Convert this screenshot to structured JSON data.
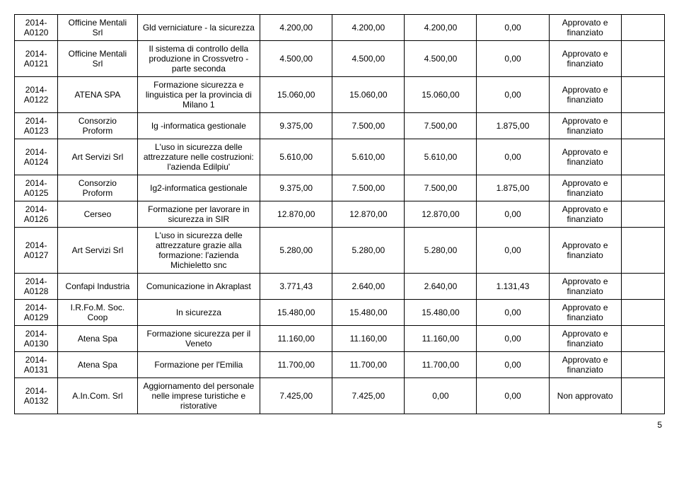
{
  "rows": [
    {
      "code": "2014-A0120",
      "org": "Officine Mentali Srl",
      "desc": "Gld verniciature - la sicurezza",
      "v1": "4.200,00",
      "v2": "4.200,00",
      "v3": "4.200,00",
      "v4": "0,00",
      "status": "Approvato e finanziato",
      "extra": ""
    },
    {
      "code": "2014-A0121",
      "org": "Officine Mentali Srl",
      "desc": "Il sistema di controllo della produzione in Crossvetro - parte seconda",
      "v1": "4.500,00",
      "v2": "4.500,00",
      "v3": "4.500,00",
      "v4": "0,00",
      "status": "Approvato e finanziato",
      "extra": ""
    },
    {
      "code": "2014-A0122",
      "org": "ATENA SPA",
      "desc": "Formazione sicurezza e linguistica per la provincia di Milano 1",
      "v1": "15.060,00",
      "v2": "15.060,00",
      "v3": "15.060,00",
      "v4": "0,00",
      "status": "Approvato e finanziato",
      "extra": ""
    },
    {
      "code": "2014-A0123",
      "org": "Consorzio Proform",
      "desc": "Ig -informatica gestionale",
      "v1": "9.375,00",
      "v2": "7.500,00",
      "v3": "7.500,00",
      "v4": "1.875,00",
      "status": "Approvato e finanziato",
      "extra": ""
    },
    {
      "code": "2014-A0124",
      "org": "Art Servizi Srl",
      "desc": "L'uso in sicurezza delle attrezzature nelle costruzioni: l'azienda Edilpiu'",
      "v1": "5.610,00",
      "v2": "5.610,00",
      "v3": "5.610,00",
      "v4": "0,00",
      "status": "Approvato e finanziato",
      "extra": ""
    },
    {
      "code": "2014-A0125",
      "org": "Consorzio Proform",
      "desc": "Ig2-informatica gestionale",
      "v1": "9.375,00",
      "v2": "7.500,00",
      "v3": "7.500,00",
      "v4": "1.875,00",
      "status": "Approvato e finanziato",
      "extra": ""
    },
    {
      "code": "2014-A0126",
      "org": "Cerseo",
      "desc": "Formazione per lavorare in sicurezza in SIR",
      "v1": "12.870,00",
      "v2": "12.870,00",
      "v3": "12.870,00",
      "v4": "0,00",
      "status": "Approvato e finanziato",
      "extra": ""
    },
    {
      "code": "2014-A0127",
      "org": "Art Servizi Srl",
      "desc": "L'uso in sicurezza delle attrezzature grazie alla formazione: l'azienda Michieletto snc",
      "v1": "5.280,00",
      "v2": "5.280,00",
      "v3": "5.280,00",
      "v4": "0,00",
      "status": "Approvato e finanziato",
      "extra": ""
    },
    {
      "code": "2014-A0128",
      "org": "Confapi Industria",
      "desc": "Comunicazione in Akraplast",
      "v1": "3.771,43",
      "v2": "2.640,00",
      "v3": "2.640,00",
      "v4": "1.131,43",
      "status": "Approvato e finanziato",
      "extra": ""
    },
    {
      "code": "2014-A0129",
      "org": "I.R.Fo.M. Soc. Coop",
      "desc": "In sicurezza",
      "v1": "15.480,00",
      "v2": "15.480,00",
      "v3": "15.480,00",
      "v4": "0,00",
      "status": "Approvato e finanziato",
      "extra": ""
    },
    {
      "code": "2014-A0130",
      "org": "Atena Spa",
      "desc": "Formazione sicurezza per il Veneto",
      "v1": "11.160,00",
      "v2": "11.160,00",
      "v3": "11.160,00",
      "v4": "0,00",
      "status": "Approvato e finanziato",
      "extra": ""
    },
    {
      "code": "2014-A0131",
      "org": "Atena Spa",
      "desc": "Formazione per l'Emilia",
      "v1": "11.700,00",
      "v2": "11.700,00",
      "v3": "11.700,00",
      "v4": "0,00",
      "status": "Approvato e finanziato",
      "extra": ""
    },
    {
      "code": "2014-A0132",
      "org": "A.In.Com. Srl",
      "desc": "Aggiornamento del personale nelle imprese turistiche e ristorative",
      "v1": "7.425,00",
      "v2": "7.425,00",
      "v3": "0,00",
      "v4": "0,00",
      "status": "Non approvato",
      "extra": ""
    }
  ],
  "pageNumber": "5"
}
